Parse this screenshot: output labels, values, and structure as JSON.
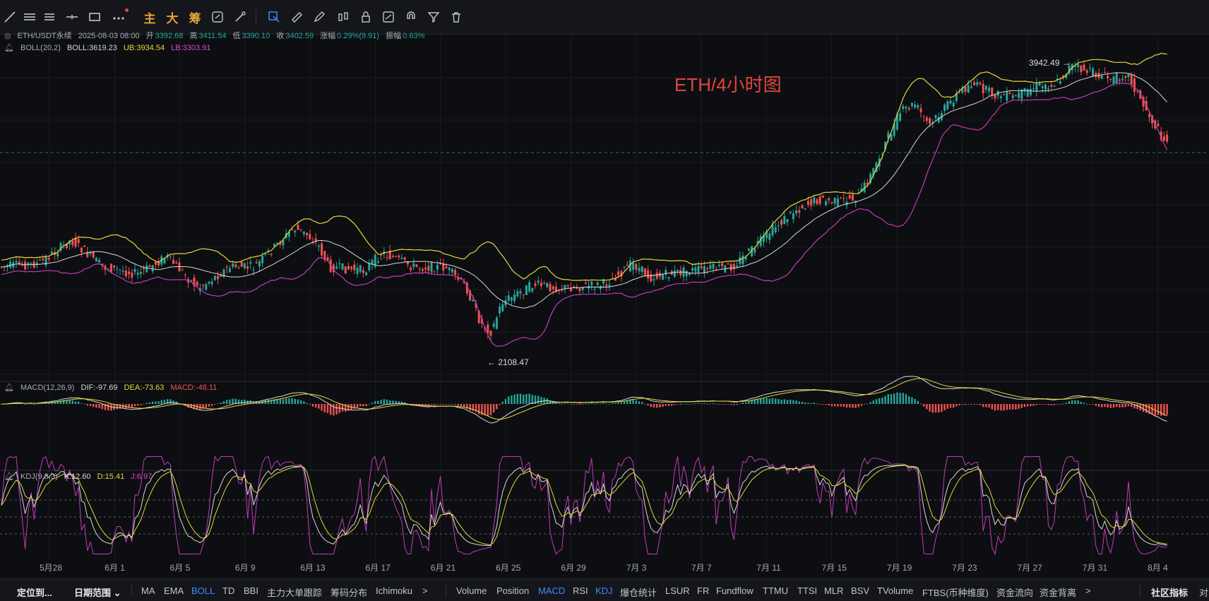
{
  "toolbar": {
    "tools": [
      "line-tool-icon",
      "horizontal-ray-icon",
      "parallel-lines-icon",
      "horizontal-line-icon",
      "rectangle-icon",
      "more-tools-icon"
    ],
    "text_buttons": [
      "主",
      "大",
      "筹"
    ],
    "right_tools": [
      "sync-icon",
      "brush-icon",
      "selection-icon",
      "measure-icon",
      "pen-icon",
      "candle-settings-icon",
      "lock-icon",
      "note-icon",
      "magnet-icon",
      "filter-icon",
      "trash-icon"
    ]
  },
  "legend_main": {
    "symbol": "ETH/USDT永续",
    "datetime": "2025-08-03 08:00",
    "open_label": "开",
    "open": "3392.68",
    "high_label": "高",
    "high": "3411.54",
    "low_label": "低",
    "low": "3390.10",
    "close_label": "收",
    "close": "3402.59",
    "change_label": "涨幅",
    "change": "0.29%(9.91)",
    "amp_label": "振幅",
    "amp": "0.63%"
  },
  "legend_boll": {
    "name": "BOLL(20,2)",
    "mid": "BOLL:3619.23",
    "ub": "UB:3934.54",
    "lb": "LB:3303.91"
  },
  "legend_macd": {
    "name": "MACD(12,26,9)",
    "dif": "DIF:-97.69",
    "dea": "DEA:-73.63",
    "macd": "MACD:-48.11"
  },
  "legend_kdj": {
    "name": "KDJ(9,3,3)",
    "k": "K:12.60",
    "d": "D:15.41",
    "j": "J:6.97"
  },
  "overlay_title": "ETH/4小时图",
  "annotations": {
    "high_marker": "3942.49 →",
    "low_marker": "← 2108.47"
  },
  "x_axis_labels": [
    "5月28",
    "6月 1",
    "6月 5",
    "6月 9",
    "6月 13",
    "6月 17",
    "6月 21",
    "6月 25",
    "6月 29",
    "7月 3",
    "7月 7",
    "7月 11",
    "7月 15",
    "7月 19",
    "7月 23",
    "7月 27",
    "7月 31",
    "8月 4"
  ],
  "bottom_bar": {
    "left_items": [
      "定位到...",
      "日期范围 ⌄"
    ],
    "indicators": [
      "MA",
      "EMA",
      "BOLL",
      "TD",
      "BBI",
      "主力大单跟踪",
      "筹码分布",
      "Ichimoku"
    ],
    "more": ">",
    "sub_indicators": [
      "Volume",
      "Position",
      "MACD",
      "RSI",
      "KDJ",
      "爆仓统计",
      "LSUR",
      "FR",
      "Fundflow",
      "TTMU",
      "TTSI",
      "MLR",
      "BSV",
      "TVolume",
      "FTBS(币种维度)",
      "资金流向",
      "资金背离"
    ],
    "more2": ">",
    "right_items": [
      "社区指标",
      "对"
    ]
  },
  "colors": {
    "up": "#26a69a",
    "down": "#ef5350",
    "boll_ub": "#e7d83a",
    "boll_lb": "#c13bb8",
    "boll_mid": "#d7d7d7",
    "dif": "#d8d8d8",
    "dea": "#e7d83a",
    "j_line": "#c13bb8",
    "accent": "#3b8cff"
  }
}
